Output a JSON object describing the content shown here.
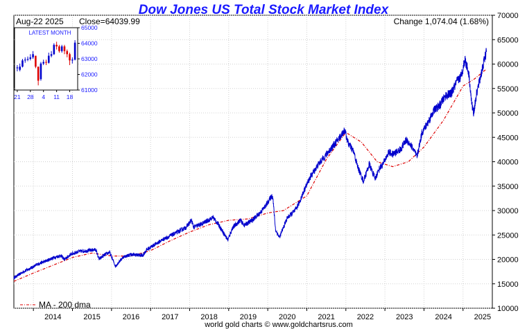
{
  "chart_data": {
    "type": "line",
    "title": "Dow Jones US Total Stock Market Index",
    "date_label": "Aug-22  2025",
    "close_label": "Close=64039.99",
    "change_label": "Change 1,074.04 (1.68%)",
    "footer": "world gold charts © www.goldchartsrus.com",
    "ylim": [
      10000,
      70000
    ],
    "yticks": [
      "10000",
      "15000",
      "20000",
      "25000",
      "30000",
      "35000",
      "40000",
      "45000",
      "50000",
      "55000",
      "60000",
      "65000",
      "70000"
    ],
    "xlim": [
      2013.5,
      2025.75
    ],
    "xticks": [
      "2014",
      "2015",
      "2016",
      "2017",
      "2018",
      "2019",
      "2020",
      "2021",
      "2022",
      "2023",
      "2024",
      "2025"
    ],
    "legend_position": "bottom-left",
    "grid": true,
    "series": [
      {
        "name": "",
        "color": "#0000cc",
        "x": [
          2013.5,
          2013.75,
          2014.0,
          2014.1,
          2014.3,
          2014.5,
          2014.7,
          2014.8,
          2014.95,
          2015.15,
          2015.4,
          2015.6,
          2015.68,
          2015.8,
          2015.95,
          2016.1,
          2016.3,
          2016.5,
          2016.8,
          2016.9,
          2017.0,
          2017.3,
          2017.6,
          2017.9,
          2018.05,
          2018.1,
          2018.3,
          2018.6,
          2018.75,
          2018.9,
          2018.98,
          2019.1,
          2019.3,
          2019.4,
          2019.6,
          2019.8,
          2019.95,
          2020.1,
          2020.13,
          2020.2,
          2020.3,
          2020.5,
          2020.7,
          2020.8,
          2020.95,
          2021.1,
          2021.3,
          2021.5,
          2021.7,
          2021.8,
          2021.97,
          2022.05,
          2022.2,
          2022.3,
          2022.45,
          2022.6,
          2022.75,
          2022.85,
          2022.95,
          2023.1,
          2023.2,
          2023.4,
          2023.55,
          2023.7,
          2023.82,
          2023.95,
          2024.1,
          2024.25,
          2024.4,
          2024.55,
          2024.7,
          2024.85,
          2024.95,
          2025.05,
          2025.15,
          2025.22,
          2025.27,
          2025.35,
          2025.45,
          2025.55,
          2025.6
        ],
        "y": [
          16200,
          17500,
          18500,
          19000,
          19600,
          20300,
          20800,
          20000,
          21000,
          21600,
          21800,
          22000,
          20000,
          20800,
          21500,
          18600,
          20500,
          21000,
          20800,
          22000,
          22500,
          24000,
          25200,
          26500,
          28000,
          26600,
          27200,
          28600,
          27000,
          25000,
          24000,
          26500,
          28000,
          27000,
          28000,
          29500,
          31000,
          33000,
          32800,
          26000,
          24500,
          28500,
          30000,
          31500,
          34500,
          37000,
          39500,
          41500,
          43500,
          44500,
          46500,
          44000,
          42000,
          39000,
          36000,
          39500,
          36500,
          38500,
          39500,
          42000,
          41500,
          42500,
          44500,
          43000,
          41000,
          46000,
          48000,
          50500,
          51500,
          53500,
          54000,
          56500,
          57500,
          61000,
          58000,
          52000,
          50000,
          54000,
          57500,
          61000,
          62500
        ]
      },
      {
        "name": "MA - 200 dma",
        "color": "#dd0000",
        "x": [
          2013.5,
          2014.0,
          2014.5,
          2015.0,
          2015.5,
          2016.0,
          2016.5,
          2017.0,
          2017.5,
          2018.0,
          2018.5,
          2019.0,
          2019.5,
          2020.0,
          2020.4,
          2020.7,
          2021.0,
          2021.5,
          2022.0,
          2022.4,
          2022.8,
          2023.2,
          2023.6,
          2024.0,
          2024.5,
          2025.0,
          2025.3,
          2025.6
        ],
        "y": [
          15500,
          17200,
          18800,
          20400,
          21300,
          20700,
          20700,
          21800,
          23800,
          25600,
          27100,
          28000,
          28300,
          29500,
          30000,
          31500,
          33000,
          40500,
          46000,
          44000,
          40000,
          39000,
          40000,
          43000,
          48500,
          55500,
          57000,
          59000
        ]
      }
    ],
    "inset": {
      "title": "LATEST MONTH",
      "ylim": [
        61000,
        65000
      ],
      "yticks": [
        "61000",
        "62000",
        "63000",
        "64000",
        "65000"
      ],
      "xticks": [
        "21",
        "28",
        "4",
        "11",
        "18"
      ],
      "bars": [
        {
          "o": 62400,
          "c": 62450,
          "h": 62600,
          "l": 62200
        },
        {
          "o": 62300,
          "c": 62500,
          "h": 62700,
          "l": 62200
        },
        {
          "o": 62500,
          "c": 62900,
          "h": 63000,
          "l": 62450
        },
        {
          "o": 62900,
          "c": 62950,
          "h": 63100,
          "l": 62750
        },
        {
          "o": 62950,
          "c": 63000,
          "h": 63150,
          "l": 62850
        },
        {
          "o": 63000,
          "c": 63100,
          "h": 63300,
          "l": 62900
        },
        {
          "o": 63100,
          "c": 63300,
          "h": 63500,
          "l": 63000
        },
        {
          "o": 63200,
          "c": 62500,
          "h": 63200,
          "l": 62400
        },
        {
          "o": 62500,
          "c": 61600,
          "h": 62500,
          "l": 61300
        },
        {
          "o": 61700,
          "c": 62700,
          "h": 62800,
          "l": 61600
        },
        {
          "o": 62700,
          "c": 62800,
          "h": 62950,
          "l": 62600
        },
        {
          "o": 62800,
          "c": 62750,
          "h": 62950,
          "l": 62600
        },
        {
          "o": 62750,
          "c": 63200,
          "h": 63400,
          "l": 62700
        },
        {
          "o": 63200,
          "c": 63300,
          "h": 63500,
          "l": 63100
        },
        {
          "o": 63300,
          "c": 63900,
          "h": 64000,
          "l": 63250
        },
        {
          "o": 63900,
          "c": 63800,
          "h": 64100,
          "l": 63600
        },
        {
          "o": 63800,
          "c": 63500,
          "h": 63900,
          "l": 63400
        },
        {
          "o": 63500,
          "c": 63800,
          "h": 63900,
          "l": 63400
        },
        {
          "o": 63800,
          "c": 63500,
          "h": 63900,
          "l": 63300
        },
        {
          "o": 63500,
          "c": 63300,
          "h": 63600,
          "l": 63100
        },
        {
          "o": 63300,
          "c": 62900,
          "h": 63400,
          "l": 62600
        },
        {
          "o": 62900,
          "c": 62950,
          "h": 63100,
          "l": 62700
        },
        {
          "o": 62950,
          "c": 64040,
          "h": 64200,
          "l": 62900
        }
      ]
    }
  }
}
